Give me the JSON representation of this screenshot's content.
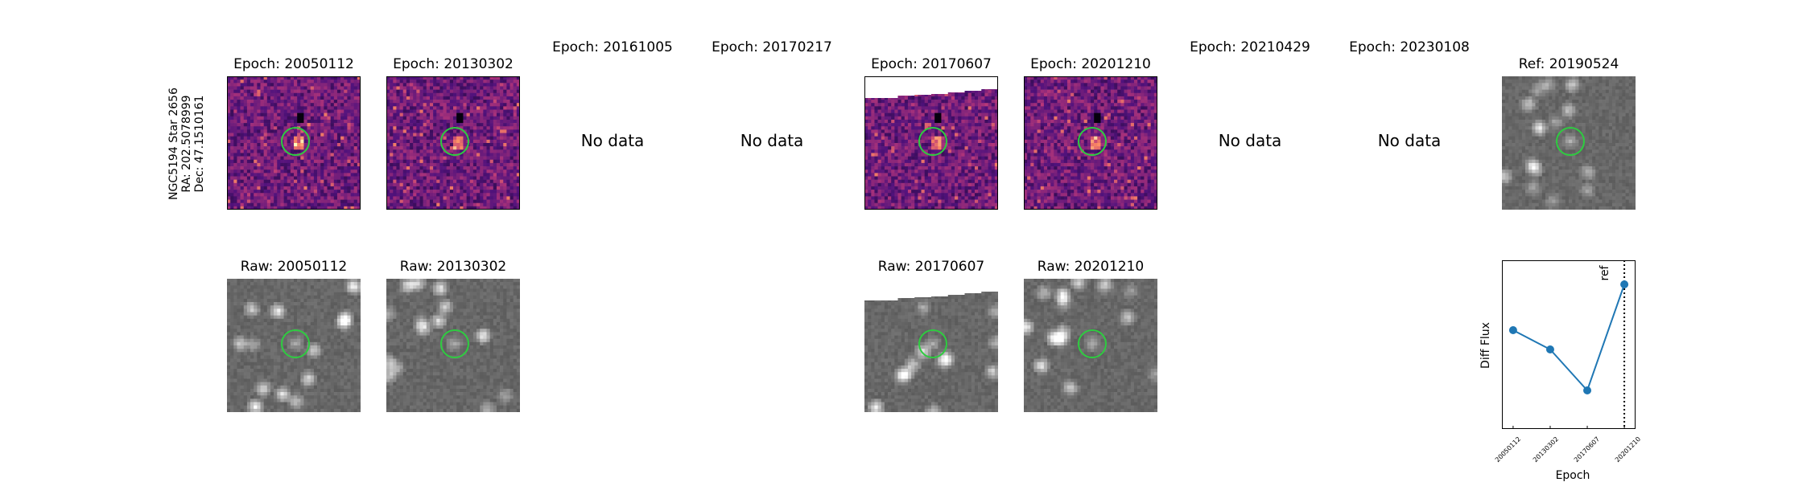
{
  "target": {
    "name": "NGC5194 Star 2656",
    "ra": "RA: 202.5078999",
    "dec": "Dec: 47.1510161"
  },
  "diff_row": [
    {
      "title": "Epoch: 20050112",
      "has_data": true
    },
    {
      "title": "Epoch: 20130302",
      "has_data": true
    },
    {
      "title": "Epoch: 20161005",
      "has_data": false
    },
    {
      "title": "Epoch: 20170217",
      "has_data": false
    },
    {
      "title": "Epoch: 20170607",
      "has_data": true
    },
    {
      "title": "Epoch: 20201210",
      "has_data": true
    },
    {
      "title": "Epoch: 20210429",
      "has_data": false
    },
    {
      "title": "Epoch: 20230108",
      "has_data": false
    }
  ],
  "no_data_label": "No data",
  "reference": {
    "title": "Ref: 20190524"
  },
  "raw_row": [
    {
      "title": "Raw: 20050112",
      "slot": 0
    },
    {
      "title": "Raw: 20130302",
      "slot": 1
    },
    {
      "title": "Raw: 20170607",
      "slot": 4
    },
    {
      "title": "Raw: 20201210",
      "slot": 5
    }
  ],
  "colors": {
    "aperture": "#2ecc40",
    "series": "#1f77b4"
  },
  "chart_data": {
    "type": "line",
    "categories": [
      "20050112",
      "20130302",
      "20170607",
      "20201210"
    ],
    "values": [
      0.62,
      0.46,
      0.12,
      1.0
    ],
    "xlabel": "Epoch",
    "ylabel": "Diff Flux",
    "ref_line_label": "ref",
    "ref_line_position": 3.5,
    "y_ticks_shown": false,
    "grid": false
  }
}
